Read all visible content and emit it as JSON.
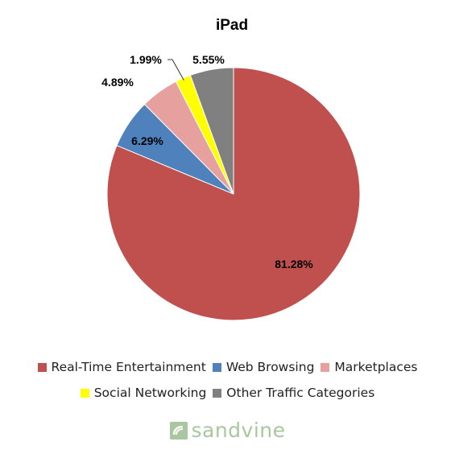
{
  "chart_data": {
    "type": "pie",
    "title": "iPad",
    "slices": [
      {
        "label": "Real-Time Entertainment",
        "value": 81.28,
        "value_label": "81.28%",
        "color": "#c0504d"
      },
      {
        "label": "Web Browsing",
        "value": 6.29,
        "value_label": "6.29%",
        "color": "#4f81bd"
      },
      {
        "label": "Marketplaces",
        "value": 4.89,
        "value_label": "4.89%",
        "color": "#e6a09e"
      },
      {
        "label": "Social Networking",
        "value": 1.99,
        "value_label": "1.99%",
        "color": "#ffff00"
      },
      {
        "label": "Other Traffic Categories",
        "value": 5.55,
        "value_label": "5.55%",
        "color": "#808080"
      }
    ],
    "start": "12 o'clock",
    "direction": "clockwise",
    "legend_position": "bottom"
  },
  "brand": {
    "name": "sandvine",
    "icon": "sandvine-logo-icon",
    "color": "#a9c79f"
  }
}
